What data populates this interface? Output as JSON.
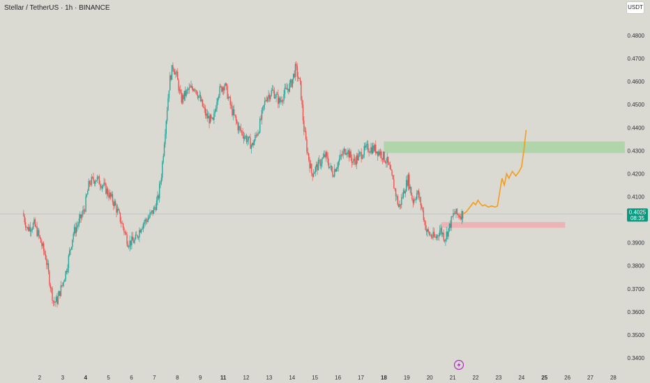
{
  "title": "Stellar / TetherUS · 1h · BINANCE",
  "unit": "USDT",
  "last_price": "0.4025",
  "countdown": "08:35",
  "colors": {
    "background": "#dad9d2",
    "up": "#26a69a",
    "down": "#ef5350",
    "projection": "#f59c1a",
    "target_zone": "#a9d3a3",
    "stop_zone": "#f0aab0",
    "last_price_tag": "#089981"
  },
  "chart_data": {
    "type": "candlestick",
    "ylim": [
      0.3375,
      0.4875
    ],
    "y_ticks": [
      "0.4800",
      "0.4700",
      "0.4600",
      "0.4500",
      "0.4400",
      "0.4300",
      "0.4200",
      "0.4100",
      "0.3900",
      "0.3800",
      "0.3700",
      "0.3600",
      "0.3500",
      "0.3400"
    ],
    "x_ticks": [
      {
        "label": "2",
        "day": 2,
        "bold": false
      },
      {
        "label": "3",
        "day": 3,
        "bold": false
      },
      {
        "label": "4",
        "day": 4,
        "bold": true
      },
      {
        "label": "5",
        "day": 5,
        "bold": false
      },
      {
        "label": "6",
        "day": 6,
        "bold": false
      },
      {
        "label": "7",
        "day": 7,
        "bold": false
      },
      {
        "label": "8",
        "day": 8,
        "bold": false
      },
      {
        "label": "9",
        "day": 9,
        "bold": false
      },
      {
        "label": "11",
        "day": 10,
        "bold": true
      },
      {
        "label": "12",
        "day": 11,
        "bold": false
      },
      {
        "label": "13",
        "day": 12,
        "bold": false
      },
      {
        "label": "14",
        "day": 13,
        "bold": false
      },
      {
        "label": "15",
        "day": 14,
        "bold": false
      },
      {
        "label": "16",
        "day": 15,
        "bold": false
      },
      {
        "label": "17",
        "day": 16,
        "bold": false
      },
      {
        "label": "18",
        "day": 17,
        "bold": true
      },
      {
        "label": "19",
        "day": 18,
        "bold": false
      },
      {
        "label": "20",
        "day": 19,
        "bold": false
      },
      {
        "label": "21",
        "day": 20,
        "bold": false
      },
      {
        "label": "22",
        "day": 21,
        "bold": false
      },
      {
        "label": "23",
        "day": 22,
        "bold": false
      },
      {
        "label": "24",
        "day": 23,
        "bold": false
      },
      {
        "label": "25",
        "day": 24,
        "bold": true
      },
      {
        "label": "26",
        "day": 25,
        "bold": false
      },
      {
        "label": "27",
        "day": 26,
        "bold": false
      },
      {
        "label": "28",
        "day": 27,
        "bold": false
      }
    ],
    "price_path": [
      [
        1.3,
        0.403
      ],
      [
        1.5,
        0.396
      ],
      [
        1.8,
        0.398
      ],
      [
        2.0,
        0.393
      ],
      [
        2.3,
        0.384
      ],
      [
        2.5,
        0.372
      ],
      [
        2.65,
        0.364
      ],
      [
        2.8,
        0.365
      ],
      [
        3.0,
        0.371
      ],
      [
        3.2,
        0.378
      ],
      [
        3.5,
        0.394
      ],
      [
        3.8,
        0.4
      ],
      [
        4.0,
        0.405
      ],
      [
        4.2,
        0.416
      ],
      [
        4.5,
        0.418
      ],
      [
        4.8,
        0.415
      ],
      [
        5.0,
        0.412
      ],
      [
        5.3,
        0.407
      ],
      [
        5.6,
        0.399
      ],
      [
        5.9,
        0.39
      ],
      [
        6.2,
        0.391
      ],
      [
        6.5,
        0.398
      ],
      [
        6.8,
        0.401
      ],
      [
        7.0,
        0.404
      ],
      [
        7.2,
        0.409
      ],
      [
        7.35,
        0.42
      ],
      [
        7.5,
        0.438
      ],
      [
        7.7,
        0.46
      ],
      [
        7.85,
        0.467
      ],
      [
        8.0,
        0.463
      ],
      [
        8.2,
        0.452
      ],
      [
        8.5,
        0.456
      ],
      [
        8.8,
        0.458
      ],
      [
        9.0,
        0.453
      ],
      [
        9.3,
        0.445
      ],
      [
        9.6,
        0.442
      ],
      [
        9.8,
        0.455
      ],
      [
        10.1,
        0.459
      ],
      [
        10.4,
        0.448
      ],
      [
        10.7,
        0.44
      ],
      [
        11.0,
        0.436
      ],
      [
        11.3,
        0.432
      ],
      [
        11.6,
        0.44
      ],
      [
        11.9,
        0.453
      ],
      [
        12.2,
        0.456
      ],
      [
        12.5,
        0.451
      ],
      [
        12.7,
        0.455
      ],
      [
        13.0,
        0.459
      ],
      [
        13.2,
        0.466
      ],
      [
        13.4,
        0.458
      ],
      [
        13.55,
        0.44
      ],
      [
        13.7,
        0.43
      ],
      [
        13.9,
        0.42
      ],
      [
        14.2,
        0.424
      ],
      [
        14.5,
        0.428
      ],
      [
        14.8,
        0.42
      ],
      [
        15.1,
        0.426
      ],
      [
        15.4,
        0.431
      ],
      [
        15.7,
        0.425
      ],
      [
        16.0,
        0.428
      ],
      [
        16.3,
        0.431
      ],
      [
        16.6,
        0.431
      ],
      [
        16.9,
        0.429
      ],
      [
        17.2,
        0.425
      ],
      [
        17.5,
        0.414
      ],
      [
        17.7,
        0.405
      ],
      [
        17.9,
        0.412
      ],
      [
        18.1,
        0.418
      ],
      [
        18.3,
        0.408
      ],
      [
        18.5,
        0.412
      ],
      [
        18.7,
        0.405
      ],
      [
        18.9,
        0.395
      ],
      [
        19.1,
        0.393
      ],
      [
        19.3,
        0.392
      ],
      [
        19.5,
        0.396
      ],
      [
        19.7,
        0.392
      ],
      [
        19.9,
        0.397
      ],
      [
        20.1,
        0.403
      ],
      [
        20.3,
        0.402
      ],
      [
        20.45,
        0.4025
      ]
    ],
    "projection": [
      [
        20.45,
        0.4025
      ],
      [
        20.6,
        0.4035
      ],
      [
        20.75,
        0.4055
      ],
      [
        20.9,
        0.4075
      ],
      [
        21.0,
        0.4065
      ],
      [
        21.1,
        0.4085
      ],
      [
        21.2,
        0.407
      ],
      [
        21.3,
        0.406
      ],
      [
        21.4,
        0.4065
      ],
      [
        21.55,
        0.4055
      ],
      [
        21.7,
        0.406
      ],
      [
        21.85,
        0.4055
      ],
      [
        21.95,
        0.406
      ],
      [
        22.05,
        0.412
      ],
      [
        22.15,
        0.418
      ],
      [
        22.25,
        0.415
      ],
      [
        22.35,
        0.42
      ],
      [
        22.45,
        0.418
      ],
      [
        22.6,
        0.421
      ],
      [
        22.75,
        0.419
      ],
      [
        22.9,
        0.421
      ],
      [
        23.0,
        0.423
      ],
      [
        23.1,
        0.43
      ],
      [
        23.2,
        0.439
      ]
    ],
    "zones": [
      {
        "name": "target",
        "x_start": 17.0,
        "x_end": 27.5,
        "y_low": 0.429,
        "y_high": 0.434
      },
      {
        "name": "stop",
        "x_start": 19.5,
        "x_end": 24.9,
        "y_low": 0.3965,
        "y_high": 0.399
      }
    ]
  }
}
